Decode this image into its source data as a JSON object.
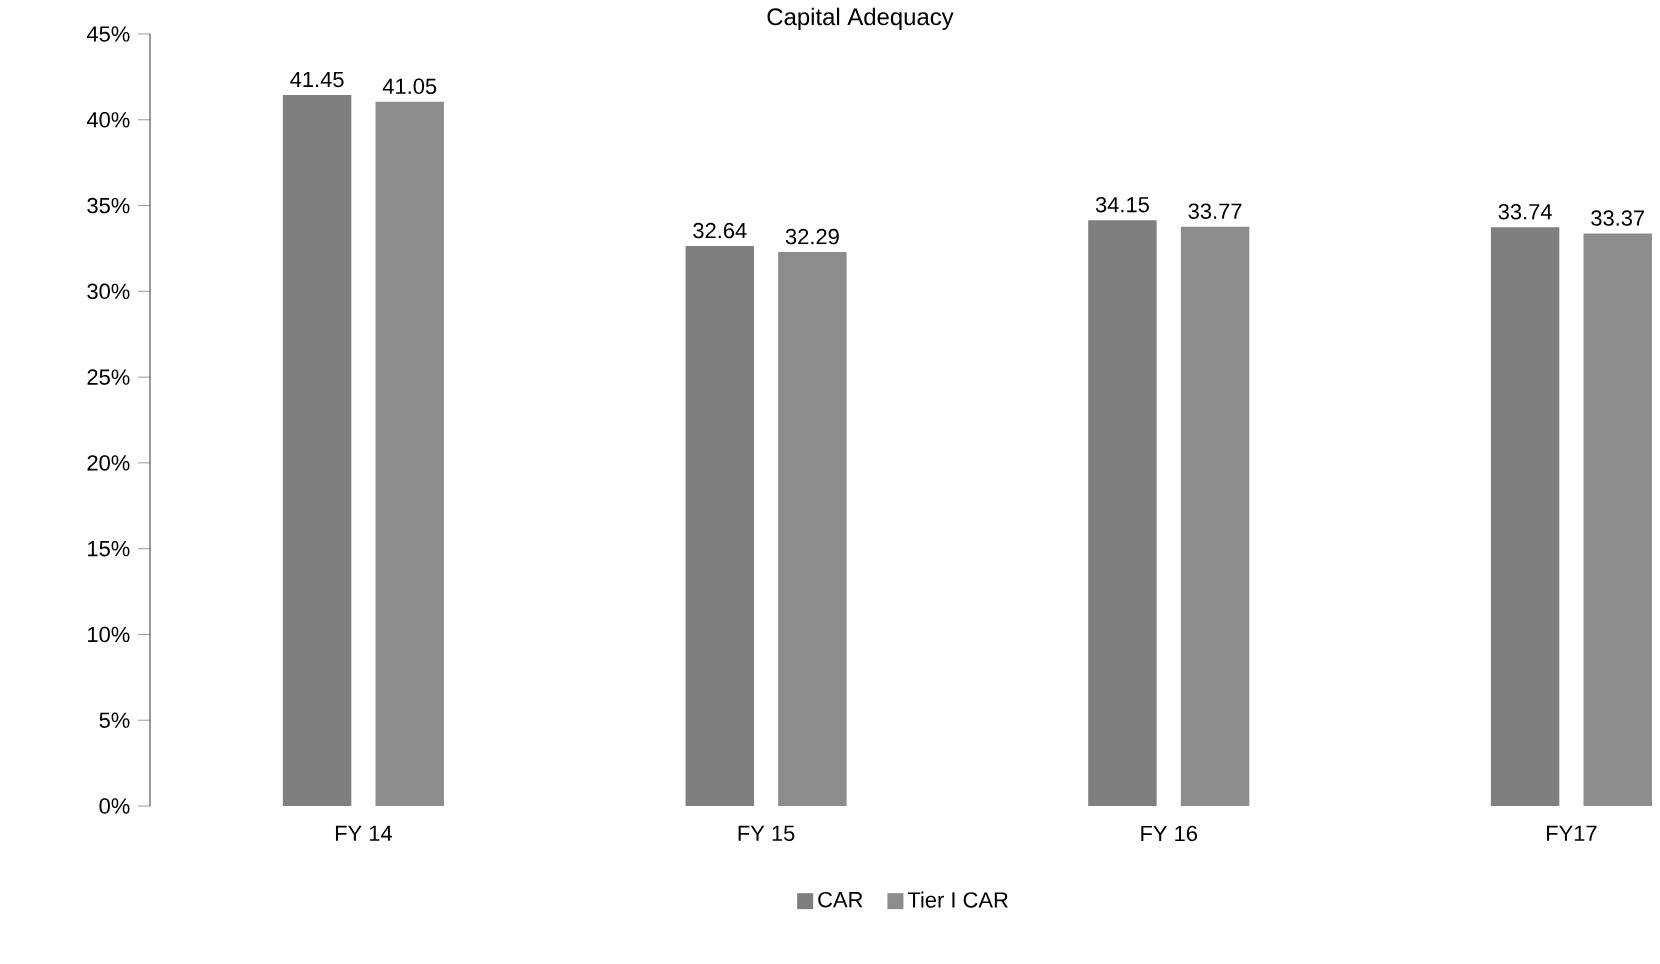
{
  "chart_data": {
    "type": "bar",
    "title": "Capital Adequacy",
    "categories": [
      "FY 14",
      "FY 15",
      "FY 16",
      "FY17"
    ],
    "series": [
      {
        "name": "CAR",
        "color": "#7f7f7f",
        "values": [
          41.45,
          32.64,
          34.15,
          33.74
        ]
      },
      {
        "name": "Tier I CAR",
        "color": "#8c8c8c",
        "values": [
          41.05,
          32.29,
          33.77,
          33.37
        ]
      }
    ],
    "ylim": [
      0,
      45
    ],
    "yticks": [
      {
        "value": 0,
        "label": "0%"
      },
      {
        "value": 5,
        "label": "5%"
      },
      {
        "value": 10,
        "label": "10%"
      },
      {
        "value": 15,
        "label": "15%"
      },
      {
        "value": 20,
        "label": "20%"
      },
      {
        "value": 25,
        "label": "25%"
      },
      {
        "value": 30,
        "label": "30%"
      },
      {
        "value": 35,
        "label": "35%"
      },
      {
        "value": 40,
        "label": "40%"
      },
      {
        "value": 45,
        "label": "45%"
      }
    ],
    "data_labels": true,
    "legend": "bottom",
    "grid": false
  }
}
